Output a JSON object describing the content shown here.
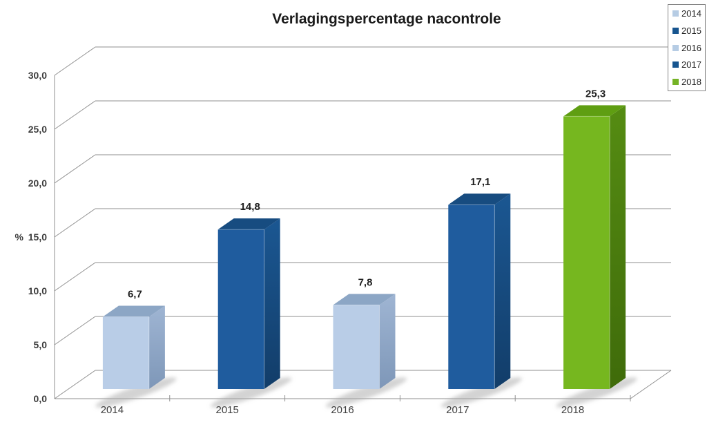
{
  "title": "Verlagingspercentage nacontrole",
  "legend": {
    "items": [
      {
        "label": "2014",
        "color": "#B6CCE4"
      },
      {
        "label": "2015",
        "color": "#17558F"
      },
      {
        "label": "2016",
        "color": "#B6CCE4"
      },
      {
        "label": "2017",
        "color": "#17558F"
      },
      {
        "label": "2018",
        "color": "#75B326"
      }
    ]
  },
  "chart_data": {
    "type": "bar",
    "projection": "3d",
    "title": "Verlagingspercentage nacontrole",
    "categories": [
      "2014",
      "2015",
      "2016",
      "2017",
      "2018"
    ],
    "values": [
      6.7,
      14.8,
      7.8,
      17.1,
      25.3
    ],
    "value_labels": [
      "6,7",
      "14,8",
      "7,8",
      "17,1",
      "25,3"
    ],
    "ylabel": "%",
    "xlabel": "",
    "ylim": [
      0,
      30
    ],
    "ytick_step": 5,
    "ytick_labels": [
      "0,0",
      "5,0",
      "10,0",
      "15,0",
      "20,0",
      "25,0",
      "30,0"
    ],
    "grid": true,
    "legend_position": "top-right",
    "bar_colors": [
      {
        "front": "#B9CDE7",
        "top": "#8CA6C5",
        "side": "#9FB5D3",
        "side2": "#7E97B8"
      },
      {
        "front": "#1F5C9E",
        "top": "#174C80",
        "side": "#1B5792",
        "side2": "#123D69"
      },
      {
        "front": "#B9CDE7",
        "top": "#8CA6C5",
        "side": "#9FB5D3",
        "side2": "#7E97B8"
      },
      {
        "front": "#1F5C9E",
        "top": "#174C80",
        "side": "#1B5792",
        "side2": "#123D69"
      },
      {
        "front": "#76B71F",
        "top": "#5F9E12",
        "side": "#558C12",
        "side2": "#3F6B0A"
      }
    ]
  },
  "colors": {
    "gridline": "#8F8F8F",
    "axis_text": "#3D3D3D",
    "label_text": "#1F1F1F",
    "legend_border": "#848484",
    "shadow": "#A8A8A8",
    "background": "#FFFFFF"
  }
}
